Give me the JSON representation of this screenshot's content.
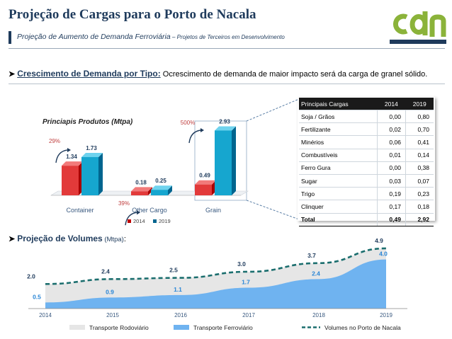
{
  "header": {
    "title": "Projeção de Cargas para o Porto de Nacala",
    "subtitle_main": "Projeção de Aumento de Demanda Ferroviária",
    "subtitle_sep": " – ",
    "subtitle_small": "Projetos de Terceiros em Desenvolvimento",
    "logo_text": "cdn"
  },
  "colors": {
    "navy": "#1f3b5c",
    "green": "#8bb33a",
    "red": "#c00000",
    "teal": "#1aa3c8",
    "gray_area": "#e6e6e6",
    "blue_area": "#6fb3f0",
    "dash": "#1b6e6e"
  },
  "bullet1": {
    "head": "Crescimento de Demanda por Tipo:",
    "text": " Ocrescimento de demanda de maior impacto será da carga de granel sólido."
  },
  "bullet2": {
    "head": "Projeção de Volumes",
    "paren": " (Mtpa)",
    "colon": ":"
  },
  "chart_data": [
    {
      "type": "bar",
      "title": "Princiapis Produtos (Mtpa)",
      "categories": [
        "Container",
        "Other Cargo",
        "Grain"
      ],
      "series": [
        {
          "name": "2014",
          "values": [
            1.34,
            0.18,
            0.49
          ]
        },
        {
          "name": "2019",
          "values": [
            1.73,
            0.25,
            2.93
          ]
        }
      ],
      "value_labels": [
        [
          "1.34",
          "0.18",
          "0.49"
        ],
        [
          "1.73",
          "0.25",
          "2.93"
        ]
      ],
      "growth_labels": [
        "29%",
        "39%",
        "500%"
      ],
      "ylim": [
        0,
        3.2
      ],
      "legend_position": "bottom"
    },
    {
      "type": "area",
      "x": [
        "2014",
        "2015",
        "2016",
        "2017",
        "2018",
        "2019"
      ],
      "series": [
        {
          "name": "Transporte Rodoviário",
          "type": "area",
          "values": [
            2.0,
            2.4,
            2.5,
            3.0,
            3.7,
            4.9
          ]
        },
        {
          "name": "Transporte Ferroviário",
          "type": "area",
          "values": [
            0.5,
            0.9,
            1.1,
            1.7,
            2.4,
            4.0
          ]
        },
        {
          "name": "Volumes no Porto de Nacala",
          "type": "line-dashed",
          "values": [
            2.0,
            2.4,
            2.5,
            3.0,
            3.7,
            4.9
          ]
        }
      ],
      "total_labels": [
        "2.0",
        "2.4",
        "2.5",
        "3.0",
        "3.7",
        "4.9"
      ],
      "rail_labels": [
        "0.5",
        "0.9",
        "1.1",
        "1.7",
        "2.4",
        "4.0"
      ],
      "ylim": [
        0,
        5.3
      ],
      "legend_position": "bottom"
    }
  ],
  "table": {
    "headers": [
      "Principais Cargas",
      "2014",
      "2019"
    ],
    "rows": [
      [
        "Soja / Grãos",
        "0,00",
        "0,80"
      ],
      [
        "Fertilizante",
        "0,02",
        "0,70"
      ],
      [
        "Minérios",
        "0,06",
        "0,41"
      ],
      [
        " Combustíveis",
        "0,01",
        "0,14"
      ],
      [
        "Ferro Gura",
        "0,00",
        "0,38"
      ],
      [
        "Sugar",
        "0,03",
        "0,07"
      ],
      [
        "Trigo",
        "0,19",
        "0,23"
      ],
      [
        "Clinquer",
        "0,17",
        "0,18"
      ]
    ],
    "total": [
      "Total",
      "0,49",
      "2,92"
    ]
  }
}
